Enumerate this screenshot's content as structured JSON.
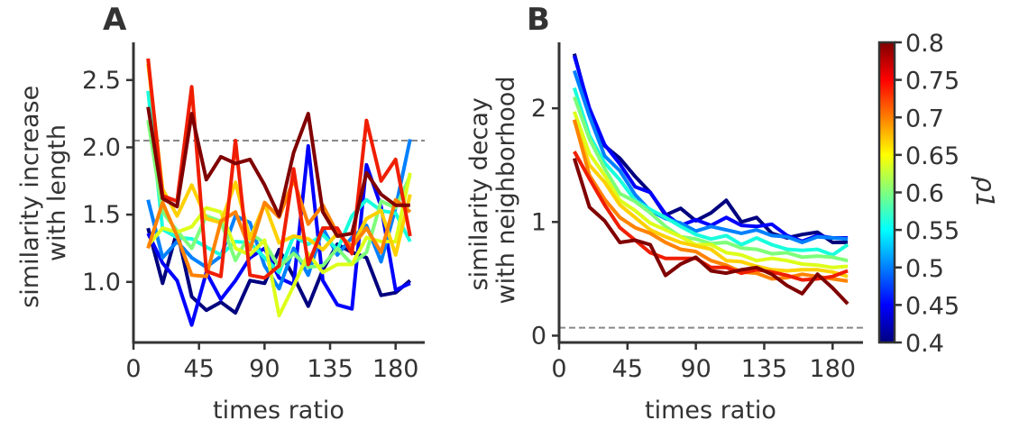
{
  "chart_data": [
    {
      "panel": "A",
      "type": "line",
      "xlabel": "times ratio",
      "ylabel": "similarity increase\nwith length",
      "xlim": [
        0,
        200
      ],
      "ylim": [
        0.55,
        2.78
      ],
      "xticks": [
        0,
        45,
        90,
        135,
        180
      ],
      "yticks": [
        1.0,
        1.5,
        2.0,
        2.5
      ],
      "ytick_labels": [
        "1.0",
        "1.5",
        "2.0",
        "2.5"
      ],
      "reference_line": {
        "y": 2.05,
        "style": "dashed",
        "color": "#888888"
      },
      "x": [
        10,
        20,
        30,
        40,
        50,
        60,
        70,
        80,
        90,
        100,
        110,
        120,
        130,
        140,
        150,
        160,
        170,
        180,
        190
      ],
      "series": [
        {
          "p1": 0.4,
          "color": "#00007f",
          "values": [
            1.4,
            0.99,
            1.38,
            0.89,
            0.79,
            0.85,
            0.77,
            1.01,
            0.99,
            1.24,
            1.04,
            0.82,
            1.09,
            1.28,
            1.22,
            1.18,
            0.9,
            0.92,
            1.01
          ]
        },
        {
          "p1": 0.45,
          "color": "#0000ff",
          "values": [
            1.36,
            1.14,
            1.01,
            0.68,
            1.07,
            0.87,
            1.01,
            1.18,
            1.25,
            1.03,
            0.98,
            2.01,
            1.01,
            0.83,
            0.8,
            1.87,
            1.56,
            0.94,
            0.99
          ]
        },
        {
          "p1": 0.5,
          "color": "#0080ff",
          "values": [
            1.61,
            1.18,
            1.3,
            1.18,
            1.11,
            1.19,
            1.49,
            1.44,
            1.12,
            0.95,
            1.25,
            1.05,
            1.4,
            1.2,
            1.33,
            1.42,
            1.15,
            1.55,
            2.06
          ]
        },
        {
          "p1": 0.55,
          "color": "#18ffdd",
          "values": [
            2.42,
            1.39,
            1.33,
            1.32,
            1.26,
            1.2,
            1.3,
            1.29,
            1.18,
            1.07,
            1.34,
            1.28,
            1.35,
            1.24,
            1.49,
            1.61,
            1.53,
            1.51,
            1.3
          ]
        },
        {
          "p1": 0.6,
          "color": "#7dff7a",
          "values": [
            2.2,
            1.52,
            1.38,
            1.25,
            1.49,
            1.45,
            1.16,
            1.36,
            1.29,
            1.11,
            1.21,
            1.11,
            1.12,
            1.25,
            1.13,
            1.22,
            1.6,
            1.55,
            1.79
          ]
        },
        {
          "p1": 0.65,
          "color": "#ddff1a",
          "values": [
            1.27,
            1.4,
            1.37,
            1.41,
            1.55,
            1.52,
            1.25,
            1.2,
            1.31,
            0.75,
            0.97,
            1.21,
            1.07,
            1.13,
            1.13,
            1.33,
            1.3,
            1.3,
            1.81
          ]
        },
        {
          "p1": 0.7,
          "color": "#ffd000",
          "values": [
            2.62,
            1.69,
            1.49,
            1.72,
            1.47,
            1.44,
            1.74,
            1.32,
            1.58,
            1.29,
            1.34,
            1.32,
            1.24,
            1.36,
            1.26,
            1.47,
            1.53,
            1.2,
            1.65
          ]
        },
        {
          "p1": 0.75,
          "color": "#ff8200",
          "values": [
            1.25,
            1.59,
            1.34,
            1.05,
            1.04,
            1.45,
            1.52,
            1.24,
            1.59,
            1.48,
            1.76,
            1.43,
            1.57,
            1.36,
            1.26,
            1.4,
            1.22,
            1.61,
            1.52
          ]
        },
        {
          "p1": 0.78,
          "color": "#f01e00",
          "values": [
            2.66,
            1.64,
            1.6,
            2.45,
            1.08,
            1.04,
            2.05,
            1.05,
            1.03,
            1.12,
            1.84,
            1.13,
            1.4,
            1.4,
            1.21,
            2.2,
            1.75,
            1.91,
            1.34
          ]
        },
        {
          "p1": 0.8,
          "color": "#800000",
          "values": [
            2.3,
            1.62,
            1.56,
            2.25,
            1.76,
            1.93,
            1.88,
            1.91,
            1.72,
            1.49,
            1.96,
            2.25,
            1.52,
            1.34,
            1.36,
            1.81,
            1.65,
            1.57,
            1.57
          ]
        }
      ]
    },
    {
      "panel": "B",
      "type": "line",
      "xlabel": "times ratio",
      "ylabel": "similarity decay\nwith neighborhood",
      "xlim": [
        0,
        200
      ],
      "ylim": [
        -0.06,
        2.58
      ],
      "xticks": [
        0,
        45,
        90,
        135,
        180
      ],
      "yticks": [
        0,
        1,
        2
      ],
      "ytick_labels": [
        "0",
        "1",
        "2"
      ],
      "reference_line": {
        "y": 0.07,
        "style": "dashed",
        "color": "#888888"
      },
      "x": [
        10,
        20,
        30,
        40,
        50,
        60,
        70,
        80,
        90,
        100,
        110,
        120,
        130,
        140,
        150,
        160,
        170,
        180,
        190
      ],
      "series": [
        {
          "p1": 0.4,
          "color": "#00007f",
          "values": [
            2.48,
            1.98,
            1.67,
            1.56,
            1.4,
            1.26,
            1.06,
            1.12,
            1.01,
            1.08,
            1.19,
            1.0,
            1.04,
            0.9,
            0.86,
            0.89,
            0.91,
            0.82,
            0.82
          ]
        },
        {
          "p1": 0.45,
          "color": "#0000ff",
          "values": [
            2.46,
            2.0,
            1.68,
            1.51,
            1.31,
            1.26,
            1.07,
            0.97,
            1.02,
            0.97,
            1.04,
            0.97,
            0.96,
            0.98,
            0.88,
            0.83,
            0.88,
            0.86,
            0.86
          ]
        },
        {
          "p1": 0.5,
          "color": "#0080ff",
          "values": [
            2.33,
            1.93,
            1.58,
            1.45,
            1.24,
            1.1,
            1.03,
            0.99,
            0.92,
            0.96,
            0.93,
            0.9,
            0.93,
            0.88,
            0.87,
            0.82,
            0.87,
            0.86,
            0.85
          ]
        },
        {
          "p1": 0.55,
          "color": "#18ffdd",
          "values": [
            2.18,
            1.76,
            1.52,
            1.37,
            1.19,
            1.11,
            1.04,
            0.96,
            0.89,
            0.85,
            0.88,
            0.8,
            0.86,
            0.8,
            0.76,
            0.75,
            0.76,
            0.71,
            0.8
          ]
        },
        {
          "p1": 0.6,
          "color": "#7dff7a",
          "values": [
            2.1,
            1.73,
            1.47,
            1.25,
            1.18,
            1.08,
            0.96,
            0.87,
            0.85,
            0.81,
            0.82,
            0.77,
            0.76,
            0.72,
            0.73,
            0.69,
            0.7,
            0.69,
            0.66
          ]
        },
        {
          "p1": 0.65,
          "color": "#ddff1a",
          "values": [
            1.97,
            1.6,
            1.41,
            1.19,
            1.1,
            0.99,
            0.93,
            0.87,
            0.8,
            0.8,
            0.73,
            0.71,
            0.66,
            0.68,
            0.66,
            0.63,
            0.62,
            0.6,
            0.61
          ]
        },
        {
          "p1": 0.7,
          "color": "#ffd000",
          "values": [
            1.89,
            1.5,
            1.35,
            1.15,
            1.04,
            0.93,
            0.87,
            0.82,
            0.79,
            0.76,
            0.66,
            0.65,
            0.61,
            0.58,
            0.57,
            0.58,
            0.58,
            0.56,
            0.52
          ]
        },
        {
          "p1": 0.75,
          "color": "#ff8200",
          "values": [
            1.9,
            1.41,
            1.2,
            1.04,
            0.95,
            0.9,
            0.82,
            0.76,
            0.74,
            0.66,
            0.62,
            0.56,
            0.55,
            0.5,
            0.51,
            0.54,
            0.52,
            0.5,
            0.48
          ]
        },
        {
          "p1": 0.78,
          "color": "#f01e00",
          "values": [
            1.62,
            1.38,
            1.15,
            0.95,
            0.84,
            0.73,
            0.68,
            0.68,
            0.68,
            0.6,
            0.6,
            0.55,
            0.58,
            0.56,
            0.53,
            0.49,
            0.5,
            0.52,
            0.57
          ]
        },
        {
          "p1": 0.8,
          "color": "#800000",
          "values": [
            1.56,
            1.13,
            1.01,
            0.82,
            0.84,
            0.8,
            0.53,
            0.63,
            0.69,
            0.57,
            0.55,
            0.58,
            0.6,
            0.54,
            0.44,
            0.37,
            0.54,
            0.42,
            0.28
          ]
        }
      ]
    }
  ],
  "colorbar": {
    "label": "p1",
    "label_display": "ρ1",
    "range": [
      0.4,
      0.8
    ],
    "colormap": "jet",
    "colors": [
      "#00007f",
      "#0000ff",
      "#007fff",
      "#00ffff",
      "#7fff7f",
      "#ffff00",
      "#ff7f00",
      "#ff0000",
      "#7f0000"
    ],
    "ticks": [
      0.4,
      0.45,
      0.5,
      0.55,
      0.6,
      0.65,
      0.7,
      0.75,
      0.8
    ],
    "tick_labels": [
      "0.4",
      "0.45",
      "0.5",
      "0.55",
      "0.6",
      "0.65",
      "0.7",
      "0.75",
      "0.8"
    ]
  }
}
